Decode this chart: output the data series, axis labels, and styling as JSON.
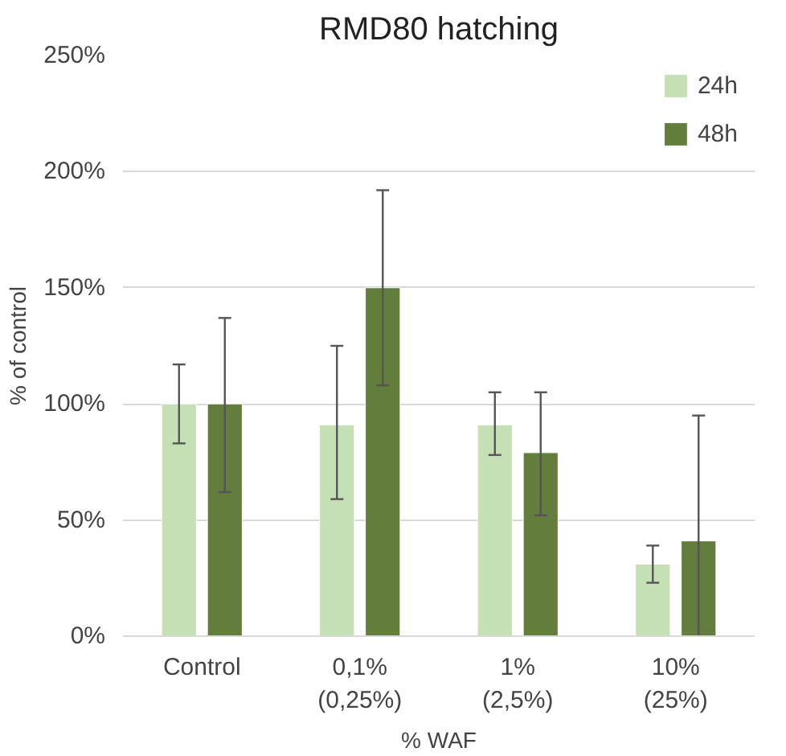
{
  "chart_data": {
    "type": "bar",
    "title": "RMD80 hatching",
    "xlabel": "% WAF",
    "ylabel": "% of control",
    "categories": [
      "Control",
      "0,1%\n(0,25%)",
      "1%\n(2,5%)",
      "10%\n(25%)"
    ],
    "series": [
      {
        "name": "24h",
        "color": "#c5e0b4",
        "values": [
          100,
          91,
          91,
          31
        ],
        "errors": [
          [
            83,
            117
          ],
          [
            59,
            125
          ],
          [
            78,
            105
          ],
          [
            23,
            39
          ]
        ]
      },
      {
        "name": "48h",
        "color": "#627d3c",
        "values": [
          100,
          150,
          79,
          41
        ],
        "errors": [
          [
            62,
            137
          ],
          [
            108,
            192
          ],
          [
            52,
            105
          ],
          [
            0,
            95
          ]
        ]
      }
    ],
    "ylim": [
      0,
      250
    ],
    "yticks": [
      {
        "value": 0,
        "label": "0%"
      },
      {
        "value": 50,
        "label": "50%"
      },
      {
        "value": 100,
        "label": "100%"
      },
      {
        "value": 150,
        "label": "150%"
      },
      {
        "value": 200,
        "label": "200%"
      },
      {
        "value": 250,
        "label": "250%"
      }
    ],
    "grid": "y",
    "legend": "top right"
  }
}
